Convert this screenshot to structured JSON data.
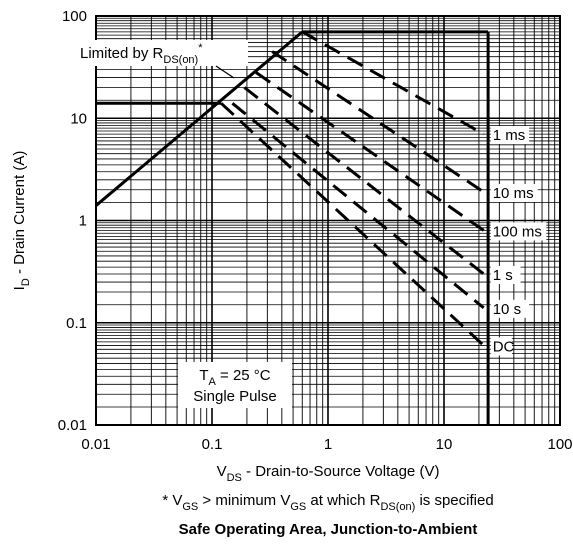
{
  "chart_data": {
    "type": "line",
    "title": "Safe Operating Area, Junction-to-Ambient",
    "xlabel": {
      "main": "V",
      "sub": "DS",
      "rest": " - Drain-to-Source Voltage (V)"
    },
    "ylabel": {
      "main": "I",
      "sub": "D",
      "rest": " - Drain Current (A)"
    },
    "xscale": "log",
    "yscale": "log",
    "xlim": [
      0.01,
      100
    ],
    "ylim": [
      0.01,
      100
    ],
    "grid": true,
    "x_tick_labels": [
      "0.01",
      "0.1",
      "1",
      "10",
      "100"
    ],
    "y_tick_labels": [
      "0.01",
      "0.1",
      "1",
      "10",
      "100"
    ],
    "footnote": {
      "p1": "* V",
      "s1": "GS",
      "p2": " > minimum V",
      "s2": "GS",
      "p3": " at which R",
      "s3": "DS(on)",
      "p4": " is specified"
    },
    "limit_annotation": {
      "main": "Limited by R",
      "sub": "DS(on)",
      "sup": "*"
    },
    "conditions": {
      "ta_main": "T",
      "ta_sub": "A",
      "ta_rest": " = 25 °C",
      "pulse": "Single Pulse"
    },
    "limits": {
      "rds_on_line": [
        [
          0.01,
          1.4
        ],
        [
          0.6,
          70
        ]
      ],
      "current_limit_pulsed": [
        [
          0.6,
          70
        ],
        [
          24,
          70
        ]
      ],
      "current_limit_continuous": [
        [
          0.01,
          14
        ],
        [
          0.12,
          14
        ]
      ],
      "voltage_limit": [
        [
          24,
          0.01
        ],
        [
          24,
          70
        ]
      ]
    },
    "series": [
      {
        "name": "1 ms",
        "points": [
          [
            0.6,
            70
          ],
          [
            22,
            7
          ]
        ]
      },
      {
        "name": "10 ms",
        "points": [
          [
            0.33,
            45
          ],
          [
            22,
            1.9
          ]
        ]
      },
      {
        "name": "100 ms",
        "points": [
          [
            0.24,
            28
          ],
          [
            22,
            0.8
          ]
        ]
      },
      {
        "name": "1 s",
        "points": [
          [
            0.19,
            20
          ],
          [
            22,
            0.3
          ]
        ]
      },
      {
        "name": "10 s",
        "points": [
          [
            0.15,
            14
          ],
          [
            22,
            0.14
          ]
        ]
      },
      {
        "name": "DC",
        "points": [
          [
            0.12,
            14
          ],
          [
            22,
            0.06
          ]
        ]
      }
    ]
  }
}
